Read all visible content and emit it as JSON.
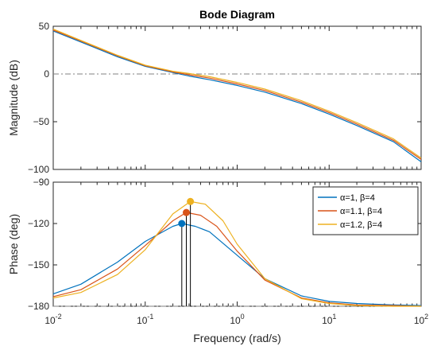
{
  "chart_data": [
    {
      "type": "line",
      "panel": "magnitude",
      "title": "Bode Diagram",
      "xlabel": "",
      "ylabel": "Magnitude (dB)",
      "xscale": "log",
      "xlim": [
        0.01,
        100
      ],
      "ylim": [
        -100,
        50
      ],
      "yticks": [
        50,
        0,
        -50,
        -100
      ],
      "reference_line": {
        "y": 0,
        "style": "dash-dot",
        "color": "#808080"
      },
      "grid": false,
      "series": [
        {
          "name": "α=1, β=4",
          "color": "#0072BD",
          "x": [
            0.01,
            0.02,
            0.05,
            0.1,
            0.2,
            0.3,
            0.5,
            1,
            2,
            5,
            10,
            20,
            50,
            100
          ],
          "y": [
            45,
            33.5,
            18,
            8,
            1.5,
            -2.2,
            -6,
            -12,
            -19,
            -31,
            -42,
            -54,
            -71,
            -92
          ]
        },
        {
          "name": "α=1.1, β=4",
          "color": "#D95319",
          "x": [
            0.01,
            0.02,
            0.05,
            0.1,
            0.2,
            0.3,
            0.5,
            1,
            2,
            5,
            10,
            20,
            50,
            100
          ],
          "y": [
            46,
            34.5,
            19,
            8.6,
            2.2,
            -0.8,
            -4.3,
            -10.4,
            -17.3,
            -29.5,
            -40.5,
            -52.5,
            -69.5,
            -89.5
          ]
        },
        {
          "name": "α=1.2, β=4",
          "color": "#EDB120",
          "x": [
            0.01,
            0.02,
            0.05,
            0.1,
            0.2,
            0.3,
            0.5,
            1,
            2,
            5,
            10,
            20,
            50,
            100
          ],
          "y": [
            47,
            35.2,
            19.6,
            9.2,
            2.8,
            0.5,
            -2.8,
            -8.8,
            -15.8,
            -28,
            -39,
            -51,
            -68,
            -88
          ]
        }
      ]
    },
    {
      "type": "line",
      "panel": "phase",
      "title": "",
      "xlabel": "Frequency (rad/s)",
      "ylabel": "Phase (deg)",
      "xscale": "log",
      "xlim": [
        0.01,
        100
      ],
      "ylim": [
        -180,
        -90
      ],
      "xticks": [
        0.01,
        0.1,
        1,
        10,
        100
      ],
      "yticks": [
        -90,
        -120,
        -150,
        -180
      ],
      "reference_line": {
        "y": -180,
        "style": "dash-dot",
        "color": "#808080"
      },
      "legend": "top-right",
      "grid": false,
      "series": [
        {
          "name": "α=1, β=4",
          "color": "#0072BD",
          "x": [
            0.01,
            0.02,
            0.05,
            0.1,
            0.2,
            0.25,
            0.35,
            0.5,
            1,
            2,
            5,
            10,
            20,
            50,
            100
          ],
          "y": [
            -171,
            -164,
            -148,
            -133,
            -122,
            -120,
            -122,
            -126,
            -143,
            -160,
            -172.5,
            -176.5,
            -178,
            -179,
            -179.5
          ],
          "peak": {
            "x": 0.25,
            "y": -120
          }
        },
        {
          "name": "α=1.1, β=4",
          "color": "#D95319",
          "x": [
            0.01,
            0.02,
            0.05,
            0.1,
            0.2,
            0.28,
            0.4,
            0.6,
            1,
            2,
            5,
            10,
            20,
            50,
            100
          ],
          "y": [
            -173,
            -168,
            -153,
            -136,
            -118,
            -112,
            -114,
            -122,
            -140,
            -161,
            -174,
            -177.5,
            -179,
            -179.5,
            -180
          ],
          "peak": {
            "x": 0.28,
            "y": -112
          }
        },
        {
          "name": "α=1.2, β=4",
          "color": "#EDB120",
          "x": [
            0.01,
            0.02,
            0.05,
            0.1,
            0.2,
            0.31,
            0.45,
            0.7,
            1,
            2,
            5,
            10,
            20,
            50,
            100
          ],
          "y": [
            -174,
            -170,
            -157,
            -139,
            -113,
            -104,
            -106,
            -118,
            -135,
            -160,
            -174.5,
            -178,
            -179.5,
            -180,
            -180
          ],
          "peak": {
            "x": 0.31,
            "y": -104
          }
        }
      ]
    }
  ]
}
